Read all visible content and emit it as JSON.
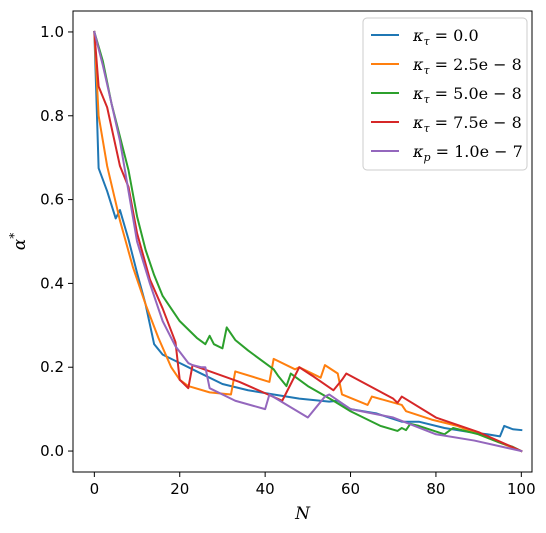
{
  "chart_data": {
    "type": "line",
    "title": "",
    "xlabel": "N",
    "ylabel": "α*",
    "xlim": [
      -5,
      102.5
    ],
    "ylim": [
      -0.05,
      1.05
    ],
    "xticks": [
      0,
      20,
      40,
      60,
      80,
      100
    ],
    "xtick_labels": [
      "0",
      "20",
      "40",
      "60",
      "80",
      "100"
    ],
    "yticks": [
      0.0,
      0.2,
      0.4,
      0.6,
      0.8,
      1.0
    ],
    "ytick_labels": [
      "0.0",
      "0.2",
      "0.4",
      "0.6",
      "0.8",
      "1.0"
    ],
    "grid": false,
    "legend_position": "top-right",
    "series": [
      {
        "name": "κτ = 0.0",
        "legend_base": "κ",
        "legend_sub": "τ",
        "legend_value": " = 0.0",
        "color": "#1f77b4",
        "x": [
          0,
          1,
          3,
          5,
          6,
          8,
          10,
          12,
          14,
          16,
          20,
          24,
          30,
          36,
          42,
          48,
          55,
          57,
          60,
          66,
          72,
          76,
          82,
          88,
          92,
          95,
          96,
          98,
          100
        ],
        "y": [
          1.0,
          0.675,
          0.62,
          0.555,
          0.575,
          0.505,
          0.425,
          0.35,
          0.255,
          0.23,
          0.21,
          0.19,
          0.16,
          0.145,
          0.135,
          0.125,
          0.118,
          0.12,
          0.1,
          0.09,
          0.07,
          0.07,
          0.055,
          0.045,
          0.04,
          0.035,
          0.06,
          0.052,
          0.05
        ]
      },
      {
        "name": "κτ = 2.5e−8",
        "legend_base": "κ",
        "legend_sub": "τ",
        "legend_value": " = 2.5e − 8",
        "color": "#ff7f0e",
        "x": [
          0,
          1,
          3,
          6,
          9,
          12,
          15,
          18,
          20,
          22,
          27,
          32,
          33,
          41,
          42,
          47,
          48,
          53,
          54,
          57,
          58,
          64,
          65,
          72,
          73,
          79,
          85,
          90,
          95,
          98,
          100
        ],
        "y": [
          1.0,
          0.8,
          0.68,
          0.55,
          0.44,
          0.35,
          0.27,
          0.2,
          0.17,
          0.155,
          0.14,
          0.135,
          0.19,
          0.165,
          0.22,
          0.195,
          0.2,
          0.175,
          0.205,
          0.185,
          0.135,
          0.11,
          0.13,
          0.11,
          0.095,
          0.075,
          0.06,
          0.04,
          0.02,
          0.008,
          0.0
        ]
      },
      {
        "name": "κτ = 5.0e−8",
        "legend_base": "κ",
        "legend_sub": "τ",
        "legend_value": " = 5.0e − 8",
        "color": "#2ca02c",
        "x": [
          0,
          2,
          4,
          6,
          8,
          10,
          12,
          14,
          16,
          18,
          20,
          24,
          26,
          27,
          28,
          30,
          31,
          33,
          36,
          42,
          43,
          45,
          46,
          48,
          50,
          56,
          60,
          64,
          67,
          71,
          72,
          73,
          74,
          76,
          82,
          84,
          90,
          95,
          98,
          100
        ],
        "y": [
          1.0,
          0.93,
          0.83,
          0.75,
          0.67,
          0.56,
          0.48,
          0.42,
          0.37,
          0.34,
          0.31,
          0.27,
          0.255,
          0.275,
          0.255,
          0.245,
          0.295,
          0.265,
          0.24,
          0.195,
          0.18,
          0.155,
          0.185,
          0.17,
          0.155,
          0.12,
          0.095,
          0.075,
          0.06,
          0.048,
          0.055,
          0.05,
          0.065,
          0.06,
          0.04,
          0.055,
          0.04,
          0.02,
          0.01,
          0.0
        ]
      },
      {
        "name": "κτ = 7.5e−8",
        "legend_base": "κ",
        "legend_sub": "τ",
        "legend_value": " = 7.5e − 8",
        "color": "#d62728",
        "x": [
          0,
          1,
          3,
          6,
          8,
          10,
          13,
          16,
          19,
          20,
          22,
          23,
          34,
          44,
          45,
          46,
          47,
          48,
          51,
          56,
          58,
          59,
          70,
          71,
          72,
          80,
          90,
          100
        ],
        "y": [
          1.0,
          0.87,
          0.82,
          0.68,
          0.63,
          0.52,
          0.41,
          0.34,
          0.26,
          0.17,
          0.15,
          0.205,
          0.165,
          0.12,
          0.14,
          0.16,
          0.18,
          0.2,
          0.18,
          0.145,
          0.17,
          0.185,
          0.125,
          0.115,
          0.13,
          0.08,
          0.045,
          0.0
        ]
      },
      {
        "name": "κp = 1.0e−7",
        "legend_base": "κ",
        "legend_sub": "p",
        "legend_value": " = 1.0e − 7",
        "color": "#9467bd",
        "x": [
          0,
          2,
          4,
          6,
          8,
          10,
          13,
          16,
          19,
          22,
          23,
          25,
          26,
          27,
          33,
          40,
          41,
          50,
          54,
          55,
          60,
          70,
          80,
          89,
          100
        ],
        "y": [
          1.0,
          0.92,
          0.83,
          0.74,
          0.62,
          0.5,
          0.4,
          0.31,
          0.25,
          0.21,
          0.205,
          0.2,
          0.2,
          0.15,
          0.12,
          0.1,
          0.135,
          0.08,
          0.13,
          0.135,
          0.1,
          0.08,
          0.04,
          0.025,
          0.0
        ]
      }
    ]
  }
}
